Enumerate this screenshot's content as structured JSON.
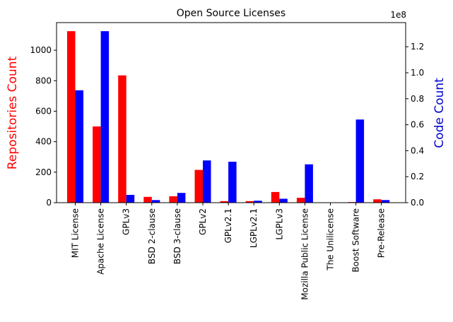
{
  "chart_data": {
    "type": "bar",
    "title": "Open Source Licenses",
    "categories": [
      "MIT License",
      "Apache License",
      "GPLv3",
      "BSD 2-clause",
      "BSD 3-clause",
      "GPLv2",
      "GPLv2.1",
      "LGPLv2.1",
      "LGPLv3",
      "Mozilla Public License",
      "The Unilicense",
      "Boost Software",
      "Pre-Release"
    ],
    "series": [
      {
        "axis": "left",
        "color": "#ff0000",
        "values": [
          1125,
          500,
          835,
          38,
          42,
          215,
          10,
          10,
          70,
          32,
          0,
          4,
          22
        ]
      },
      {
        "axis": "right",
        "color": "#0000ff",
        "values": [
          86500000,
          132000000,
          6000000,
          2000000,
          7500000,
          32500000,
          31500000,
          1500000,
          3000000,
          29500000,
          0,
          64000000,
          2000000
        ]
      }
    ],
    "ylabel_left": "Repositories Count",
    "ylabel_right": "Code Count",
    "ylabel_left_color": "#ff0000",
    "ylabel_right_color": "#0000cc",
    "ylim_left": [
      0,
      1181.25
    ],
    "ylim_right": [
      0,
      138600000
    ],
    "yticks_left": [
      0,
      200,
      400,
      600,
      800,
      1000
    ],
    "yticks_right": [
      0,
      0.2,
      0.4,
      0.6,
      0.8,
      1.0,
      1.2
    ],
    "right_axis_multiplier": "1e8",
    "grid": false
  }
}
